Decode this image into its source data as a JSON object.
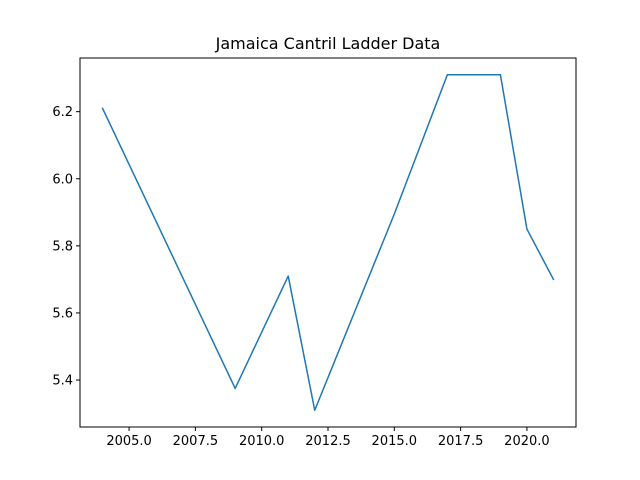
{
  "chart_data": {
    "type": "line",
    "title": "Jamaica Cantril Ladder Data",
    "xlabel": "",
    "ylabel": "",
    "x": [
      2004,
      2009,
      2011,
      2012,
      2015,
      2017,
      2018,
      2019,
      2020,
      2021
    ],
    "series": [
      {
        "values": [
          6.21,
          5.375,
          5.71,
          5.31,
          5.895,
          6.31,
          6.31,
          6.31,
          5.85,
          5.7
        ]
      }
    ],
    "xlim": [
      2003.15,
      2021.85
    ],
    "ylim": [
      5.26,
      6.36
    ],
    "xticks": [
      2005.0,
      2007.5,
      2010.0,
      2012.5,
      2015.0,
      2017.5,
      2020.0
    ],
    "xtick_labels": [
      "2005.0",
      "2007.5",
      "2010.0",
      "2012.5",
      "2015.0",
      "2017.5",
      "2020.0"
    ],
    "yticks": [
      5.4,
      5.6,
      5.8,
      6.0,
      6.2
    ],
    "ytick_labels": [
      "5.4",
      "5.6",
      "5.8",
      "6.0",
      "6.2"
    ],
    "grid": false,
    "line_color": "#1f77b4"
  }
}
